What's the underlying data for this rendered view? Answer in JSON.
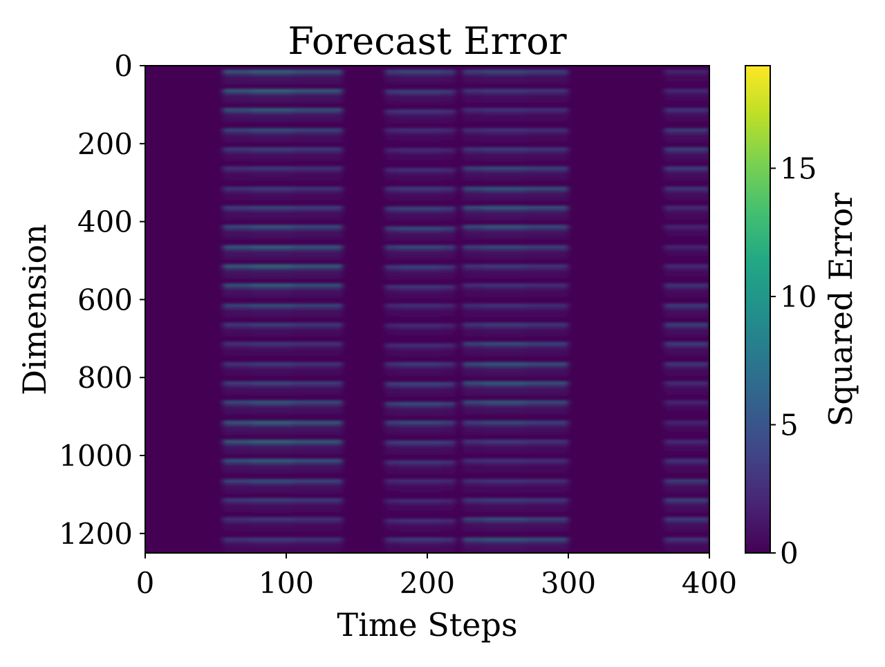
{
  "chart_data": {
    "type": "heatmap",
    "title": "Forecast Error",
    "xlabel": "Time Steps",
    "ylabel": "Dimension",
    "xlim": [
      0,
      400
    ],
    "ylim": [
      1250,
      0
    ],
    "x_ticks": [
      0,
      100,
      200,
      300,
      400
    ],
    "y_ticks": [
      0,
      200,
      400,
      600,
      800,
      1000,
      1200
    ],
    "colorbar": {
      "label": "Squared Error",
      "range": [
        0,
        19
      ],
      "ticks": [
        0,
        5,
        10,
        15
      ],
      "colormap": "viridis"
    },
    "pattern": {
      "band_period_dimensions": 50,
      "band_count": 25,
      "time_segments": [
        {
          "start": 0,
          "end": 30,
          "level": 0.3
        },
        {
          "start": 55,
          "end": 140,
          "level": 9.5,
          "peak_at": 90
        },
        {
          "start": 170,
          "end": 220,
          "level": 7.0,
          "peak_at": 195
        },
        {
          "start": 225,
          "end": 300,
          "level": 8.5,
          "peak_at": 255
        },
        {
          "start": 300,
          "end": 360,
          "level": 0.5
        },
        {
          "start": 368,
          "end": 400,
          "level": 6.5
        }
      ]
    },
    "colors": {
      "background": "#440154",
      "low": "#440154",
      "mid": "#21918c",
      "high": "#fde725"
    }
  }
}
